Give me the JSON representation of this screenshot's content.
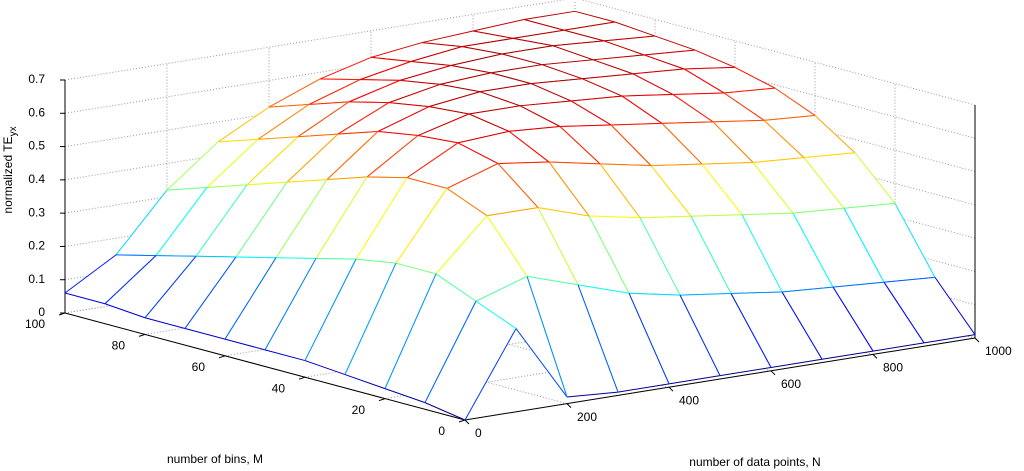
{
  "chart_data": {
    "type": "surface",
    "xlabel": "number of data points, N",
    "ylabel": "number of bins, M",
    "zlabel": "normalized TE",
    "zlabel_sub": "yx",
    "x": [
      0,
      100,
      200,
      300,
      400,
      500,
      600,
      700,
      800,
      900,
      1000
    ],
    "y": [
      0,
      10,
      20,
      30,
      40,
      50,
      60,
      70,
      80,
      90,
      100
    ],
    "z": [
      [
        0,
        0.25,
        0.02,
        0.01,
        0.01,
        0.01,
        0.01,
        0.01,
        0.01,
        0.01,
        0.01
      ],
      [
        0.02,
        0.3,
        0.35,
        0.3,
        0.25,
        0.22,
        0.2,
        0.18,
        0.17,
        0.16,
        0.15
      ],
      [
        0.03,
        0.35,
        0.5,
        0.5,
        0.45,
        0.42,
        0.4,
        0.38,
        0.36,
        0.35,
        0.34
      ],
      [
        0.04,
        0.35,
        0.55,
        0.6,
        0.58,
        0.55,
        0.52,
        0.5,
        0.48,
        0.47,
        0.46
      ],
      [
        0.05,
        0.33,
        0.55,
        0.63,
        0.64,
        0.63,
        0.61,
        0.59,
        0.57,
        0.55,
        0.54
      ],
      [
        0.05,
        0.3,
        0.52,
        0.62,
        0.66,
        0.66,
        0.65,
        0.64,
        0.62,
        0.6,
        0.59
      ],
      [
        0.05,
        0.27,
        0.48,
        0.6,
        0.65,
        0.67,
        0.67,
        0.66,
        0.65,
        0.64,
        0.62
      ],
      [
        0.05,
        0.24,
        0.44,
        0.56,
        0.63,
        0.66,
        0.67,
        0.67,
        0.66,
        0.65,
        0.64
      ],
      [
        0.05,
        0.21,
        0.4,
        0.52,
        0.6,
        0.64,
        0.66,
        0.67,
        0.67,
        0.66,
        0.65
      ],
      [
        0.06,
        0.18,
        0.36,
        0.48,
        0.56,
        0.61,
        0.64,
        0.66,
        0.66,
        0.66,
        0.66
      ],
      [
        0.06,
        0.15,
        0.32,
        0.44,
        0.52,
        0.58,
        0.62,
        0.64,
        0.65,
        0.66,
        0.66
      ]
    ],
    "xlim": [
      0,
      1000
    ],
    "xticks": [
      0,
      200,
      400,
      600,
      800,
      1000
    ],
    "ylim": [
      0,
      100
    ],
    "yticks": [
      0,
      20,
      40,
      60,
      80,
      100
    ],
    "zlim": [
      0,
      0.7
    ],
    "zticks": [
      0,
      0.1,
      0.2,
      0.3,
      0.4,
      0.5,
      0.6,
      0.7
    ],
    "grid": true,
    "colormap": "jet"
  }
}
